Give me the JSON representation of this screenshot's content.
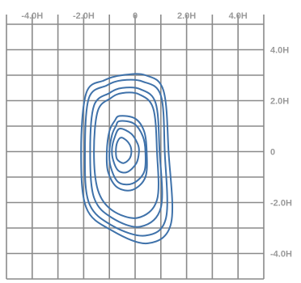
{
  "chart_data": {
    "type": "line",
    "title": "",
    "xlabel": "",
    "ylabel": "",
    "xlim": [
      -5.0,
      5.0
    ],
    "ylim": [
      -5.0,
      5.0
    ],
    "grid": true,
    "grid_step": 1.0,
    "x_ticks": [
      {
        "value": -4.0,
        "label": "-4.0H"
      },
      {
        "value": -2.0,
        "label": "-2.0H"
      },
      {
        "value": 0,
        "label": "0"
      },
      {
        "value": 2.0,
        "label": "2.0H"
      },
      {
        "value": 4.0,
        "label": "4.0H"
      }
    ],
    "y_ticks": [
      {
        "value": 4.0,
        "label": "4.0H"
      },
      {
        "value": 2.0,
        "label": "2.0H"
      },
      {
        "value": 0,
        "label": "0"
      },
      {
        "value": -2.0,
        "label": "-2.0H"
      },
      {
        "value": -4.0,
        "label": "-4.0H"
      }
    ],
    "series": [
      {
        "values": [
          [
            -0.5,
            3.0
          ],
          [
            0.4,
            3.0
          ],
          [
            1.1,
            2.4
          ],
          [
            1.3,
            0.0
          ],
          [
            1.4,
            -2.8
          ],
          [
            0.5,
            -3.6
          ],
          [
            -0.9,
            -3.1
          ],
          [
            -1.9,
            -2.2
          ],
          [
            -2.1,
            0.0
          ],
          [
            -1.9,
            2.3
          ],
          [
            -1.2,
            2.8
          ]
        ]
      },
      {
        "values": [
          [
            -0.5,
            2.8
          ],
          [
            0.3,
            2.75
          ],
          [
            1.0,
            2.2
          ],
          [
            1.15,
            0.0
          ],
          [
            1.2,
            -2.6
          ],
          [
            0.4,
            -3.3
          ],
          [
            -0.9,
            -2.9
          ],
          [
            -1.8,
            -2.0
          ],
          [
            -1.95,
            0.0
          ],
          [
            -1.8,
            2.1
          ],
          [
            -1.1,
            2.6
          ]
        ]
      },
      {
        "values": [
          [
            -0.5,
            2.5
          ],
          [
            0.2,
            2.45
          ],
          [
            0.8,
            1.9
          ],
          [
            0.95,
            0.0
          ],
          [
            1.0,
            -2.2
          ],
          [
            0.2,
            -2.95
          ],
          [
            -0.9,
            -2.6
          ],
          [
            -1.6,
            -1.8
          ],
          [
            -1.75,
            0.0
          ],
          [
            -1.6,
            1.8
          ],
          [
            -1.0,
            2.3
          ]
        ]
      },
      {
        "values": [
          [
            -0.5,
            2.3
          ],
          [
            0.15,
            2.25
          ],
          [
            0.7,
            1.7
          ],
          [
            0.85,
            0.0
          ],
          [
            0.85,
            -1.9
          ],
          [
            0.1,
            -2.6
          ],
          [
            -0.9,
            -2.3
          ],
          [
            -1.45,
            -1.5
          ],
          [
            -1.6,
            0.0
          ],
          [
            -1.45,
            1.6
          ],
          [
            -0.95,
            2.1
          ]
        ]
      },
      {
        "values": [
          [
            -0.6,
            1.4
          ],
          [
            0.0,
            1.3
          ],
          [
            0.35,
            0.8
          ],
          [
            0.45,
            0.0
          ],
          [
            0.4,
            -1.0
          ],
          [
            -0.1,
            -1.5
          ],
          [
            -0.7,
            -1.4
          ],
          [
            -1.05,
            -0.8
          ],
          [
            -1.1,
            0.0
          ],
          [
            -1.0,
            0.8
          ],
          [
            -0.8,
            1.2
          ]
        ]
      },
      {
        "values": [
          [
            -0.6,
            1.2
          ],
          [
            -0.05,
            1.1
          ],
          [
            0.3,
            0.6
          ],
          [
            0.4,
            0.0
          ],
          [
            0.35,
            -0.8
          ],
          [
            -0.1,
            -1.25
          ],
          [
            -0.65,
            -1.2
          ],
          [
            -0.95,
            -0.6
          ],
          [
            -1.0,
            0.0
          ],
          [
            -0.9,
            0.65
          ],
          [
            -0.75,
            1.0
          ]
        ]
      },
      {
        "values": [
          [
            -0.6,
            0.9
          ],
          [
            -0.15,
            0.7
          ],
          [
            0.1,
            0.3
          ],
          [
            0.15,
            0.0
          ],
          [
            0.05,
            -0.45
          ],
          [
            -0.3,
            -0.8
          ],
          [
            -0.65,
            -0.75
          ],
          [
            -0.85,
            -0.35
          ],
          [
            -0.9,
            0.1
          ],
          [
            -0.8,
            0.55
          ]
        ]
      },
      {
        "values": [
          [
            -0.55,
            0.55
          ],
          [
            -0.3,
            0.4
          ],
          [
            -0.15,
            0.1
          ],
          [
            -0.2,
            -0.25
          ],
          [
            -0.45,
            -0.45
          ],
          [
            -0.7,
            -0.3
          ],
          [
            -0.75,
            0.0
          ],
          [
            -0.7,
            0.35
          ]
        ]
      }
    ]
  },
  "colors": {
    "series_line": "#3f72aa",
    "grid": "#8a8a8a",
    "tick_label": "#9a9a9a"
  }
}
